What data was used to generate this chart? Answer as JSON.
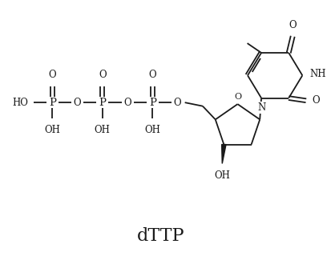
{
  "title": "dTTP",
  "bg_color": "#ffffff",
  "line_color": "#1a1a1a",
  "title_fontsize": 16,
  "label_fontsize": 8.5,
  "figsize": [
    4.18,
    3.2
  ],
  "dpi": 100,
  "xlim": [
    0,
    10
  ],
  "ylim": [
    0,
    8
  ]
}
